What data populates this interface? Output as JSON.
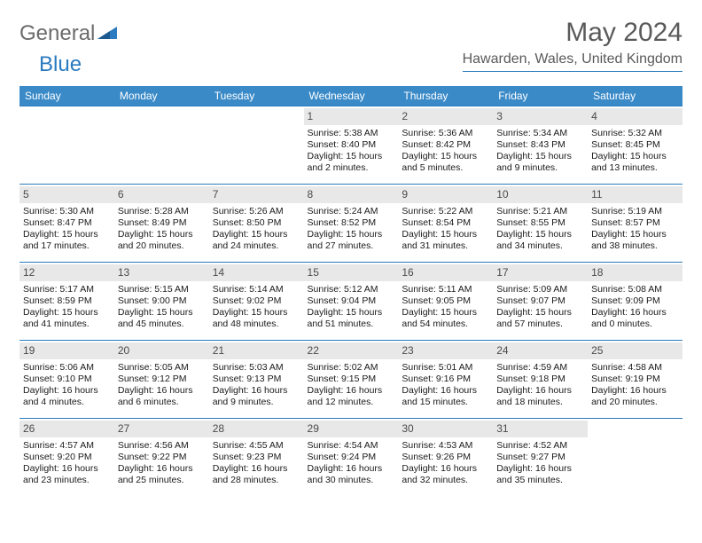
{
  "logo": {
    "general": "General",
    "blue": "Blue"
  },
  "month_title": "May 2024",
  "location": "Hawarden, Wales, United Kingdom",
  "colors": {
    "header_bg": "#3a8ac8",
    "accent_border": "#2a7bbf",
    "daynum_bg": "#e8e8e8",
    "text_gray": "#5a5a5a"
  },
  "day_headers": [
    "Sunday",
    "Monday",
    "Tuesday",
    "Wednesday",
    "Thursday",
    "Friday",
    "Saturday"
  ],
  "weeks": [
    [
      {
        "n": "",
        "sr": "",
        "ss": "",
        "dl": ""
      },
      {
        "n": "",
        "sr": "",
        "ss": "",
        "dl": ""
      },
      {
        "n": "",
        "sr": "",
        "ss": "",
        "dl": ""
      },
      {
        "n": "1",
        "sr": "Sunrise: 5:38 AM",
        "ss": "Sunset: 8:40 PM",
        "dl": "Daylight: 15 hours and 2 minutes."
      },
      {
        "n": "2",
        "sr": "Sunrise: 5:36 AM",
        "ss": "Sunset: 8:42 PM",
        "dl": "Daylight: 15 hours and 5 minutes."
      },
      {
        "n": "3",
        "sr": "Sunrise: 5:34 AM",
        "ss": "Sunset: 8:43 PM",
        "dl": "Daylight: 15 hours and 9 minutes."
      },
      {
        "n": "4",
        "sr": "Sunrise: 5:32 AM",
        "ss": "Sunset: 8:45 PM",
        "dl": "Daylight: 15 hours and 13 minutes."
      }
    ],
    [
      {
        "n": "5",
        "sr": "Sunrise: 5:30 AM",
        "ss": "Sunset: 8:47 PM",
        "dl": "Daylight: 15 hours and 17 minutes."
      },
      {
        "n": "6",
        "sr": "Sunrise: 5:28 AM",
        "ss": "Sunset: 8:49 PM",
        "dl": "Daylight: 15 hours and 20 minutes."
      },
      {
        "n": "7",
        "sr": "Sunrise: 5:26 AM",
        "ss": "Sunset: 8:50 PM",
        "dl": "Daylight: 15 hours and 24 minutes."
      },
      {
        "n": "8",
        "sr": "Sunrise: 5:24 AM",
        "ss": "Sunset: 8:52 PM",
        "dl": "Daylight: 15 hours and 27 minutes."
      },
      {
        "n": "9",
        "sr": "Sunrise: 5:22 AM",
        "ss": "Sunset: 8:54 PM",
        "dl": "Daylight: 15 hours and 31 minutes."
      },
      {
        "n": "10",
        "sr": "Sunrise: 5:21 AM",
        "ss": "Sunset: 8:55 PM",
        "dl": "Daylight: 15 hours and 34 minutes."
      },
      {
        "n": "11",
        "sr": "Sunrise: 5:19 AM",
        "ss": "Sunset: 8:57 PM",
        "dl": "Daylight: 15 hours and 38 minutes."
      }
    ],
    [
      {
        "n": "12",
        "sr": "Sunrise: 5:17 AM",
        "ss": "Sunset: 8:59 PM",
        "dl": "Daylight: 15 hours and 41 minutes."
      },
      {
        "n": "13",
        "sr": "Sunrise: 5:15 AM",
        "ss": "Sunset: 9:00 PM",
        "dl": "Daylight: 15 hours and 45 minutes."
      },
      {
        "n": "14",
        "sr": "Sunrise: 5:14 AM",
        "ss": "Sunset: 9:02 PM",
        "dl": "Daylight: 15 hours and 48 minutes."
      },
      {
        "n": "15",
        "sr": "Sunrise: 5:12 AM",
        "ss": "Sunset: 9:04 PM",
        "dl": "Daylight: 15 hours and 51 minutes."
      },
      {
        "n": "16",
        "sr": "Sunrise: 5:11 AM",
        "ss": "Sunset: 9:05 PM",
        "dl": "Daylight: 15 hours and 54 minutes."
      },
      {
        "n": "17",
        "sr": "Sunrise: 5:09 AM",
        "ss": "Sunset: 9:07 PM",
        "dl": "Daylight: 15 hours and 57 minutes."
      },
      {
        "n": "18",
        "sr": "Sunrise: 5:08 AM",
        "ss": "Sunset: 9:09 PM",
        "dl": "Daylight: 16 hours and 0 minutes."
      }
    ],
    [
      {
        "n": "19",
        "sr": "Sunrise: 5:06 AM",
        "ss": "Sunset: 9:10 PM",
        "dl": "Daylight: 16 hours and 4 minutes."
      },
      {
        "n": "20",
        "sr": "Sunrise: 5:05 AM",
        "ss": "Sunset: 9:12 PM",
        "dl": "Daylight: 16 hours and 6 minutes."
      },
      {
        "n": "21",
        "sr": "Sunrise: 5:03 AM",
        "ss": "Sunset: 9:13 PM",
        "dl": "Daylight: 16 hours and 9 minutes."
      },
      {
        "n": "22",
        "sr": "Sunrise: 5:02 AM",
        "ss": "Sunset: 9:15 PM",
        "dl": "Daylight: 16 hours and 12 minutes."
      },
      {
        "n": "23",
        "sr": "Sunrise: 5:01 AM",
        "ss": "Sunset: 9:16 PM",
        "dl": "Daylight: 16 hours and 15 minutes."
      },
      {
        "n": "24",
        "sr": "Sunrise: 4:59 AM",
        "ss": "Sunset: 9:18 PM",
        "dl": "Daylight: 16 hours and 18 minutes."
      },
      {
        "n": "25",
        "sr": "Sunrise: 4:58 AM",
        "ss": "Sunset: 9:19 PM",
        "dl": "Daylight: 16 hours and 20 minutes."
      }
    ],
    [
      {
        "n": "26",
        "sr": "Sunrise: 4:57 AM",
        "ss": "Sunset: 9:20 PM",
        "dl": "Daylight: 16 hours and 23 minutes."
      },
      {
        "n": "27",
        "sr": "Sunrise: 4:56 AM",
        "ss": "Sunset: 9:22 PM",
        "dl": "Daylight: 16 hours and 25 minutes."
      },
      {
        "n": "28",
        "sr": "Sunrise: 4:55 AM",
        "ss": "Sunset: 9:23 PM",
        "dl": "Daylight: 16 hours and 28 minutes."
      },
      {
        "n": "29",
        "sr": "Sunrise: 4:54 AM",
        "ss": "Sunset: 9:24 PM",
        "dl": "Daylight: 16 hours and 30 minutes."
      },
      {
        "n": "30",
        "sr": "Sunrise: 4:53 AM",
        "ss": "Sunset: 9:26 PM",
        "dl": "Daylight: 16 hours and 32 minutes."
      },
      {
        "n": "31",
        "sr": "Sunrise: 4:52 AM",
        "ss": "Sunset: 9:27 PM",
        "dl": "Daylight: 16 hours and 35 minutes."
      },
      {
        "n": "",
        "sr": "",
        "ss": "",
        "dl": ""
      }
    ]
  ]
}
